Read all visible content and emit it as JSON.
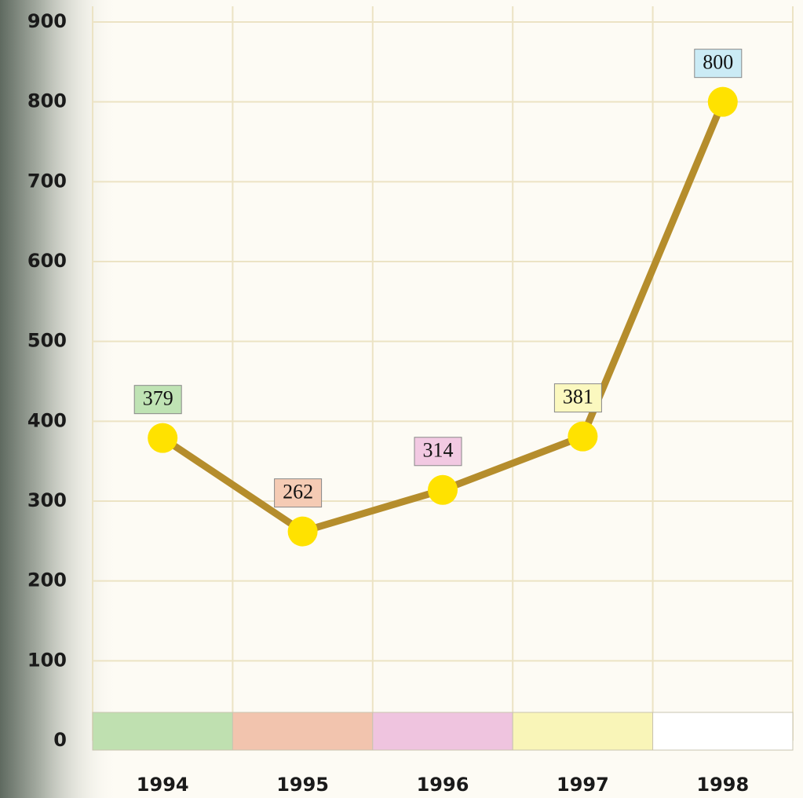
{
  "chart_data": {
    "type": "line",
    "categories": [
      "1994",
      "1995",
      "1996",
      "1997",
      "1998"
    ],
    "values": [
      379,
      262,
      314,
      381,
      800
    ],
    "color": "#b58d2c",
    "marker_color": "#ffe200",
    "label_colors": [
      "#bfe3b4",
      "#f5cbb4",
      "#f2c9e2",
      "#fbf8bf",
      "#cbebf5"
    ],
    "band_colors": [
      "#bfe0b0",
      "#f2c4ae",
      "#efc4df",
      "#f9f5b8",
      "#ffffff"
    ],
    "ylim": [
      0,
      900
    ],
    "yticks": [
      0,
      100,
      200,
      300,
      400,
      500,
      600,
      700,
      800,
      900
    ],
    "grid": true
  }
}
